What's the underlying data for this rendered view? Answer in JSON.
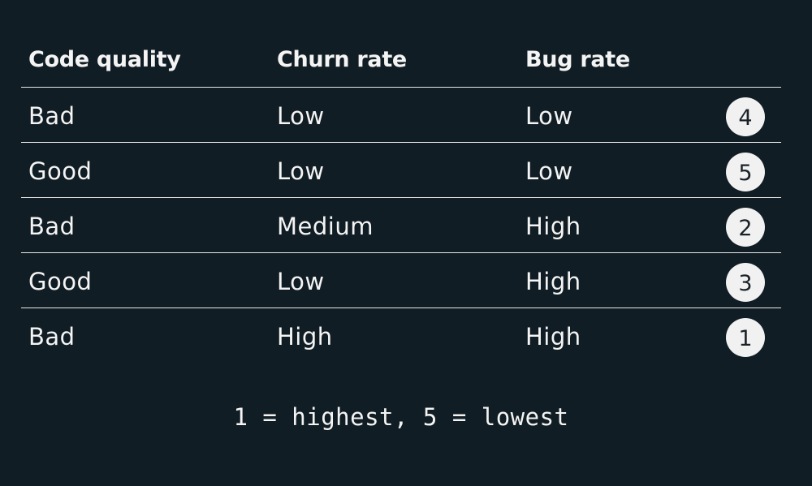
{
  "table": {
    "headers": [
      "Code quality",
      "Churn rate",
      "Bug rate"
    ],
    "rows": [
      {
        "quality": "Bad",
        "churn": "Low",
        "bugs": "Low",
        "rank": "4"
      },
      {
        "quality": "Good",
        "churn": "Low",
        "bugs": "Low",
        "rank": "5"
      },
      {
        "quality": "Bad",
        "churn": "Medium",
        "bugs": "High",
        "rank": "2"
      },
      {
        "quality": "Good",
        "churn": "Low",
        "bugs": "High",
        "rank": "3"
      },
      {
        "quality": "Bad",
        "churn": "High",
        "bugs": "High",
        "rank": "1"
      }
    ]
  },
  "footnote": "1 = highest, 5 = lowest",
  "colors": {
    "background": "#111d24",
    "text": "#f4f4f4",
    "badge_bg": "#f1f1f1",
    "badge_text": "#1a2228",
    "divider": "#e8e8e8"
  }
}
